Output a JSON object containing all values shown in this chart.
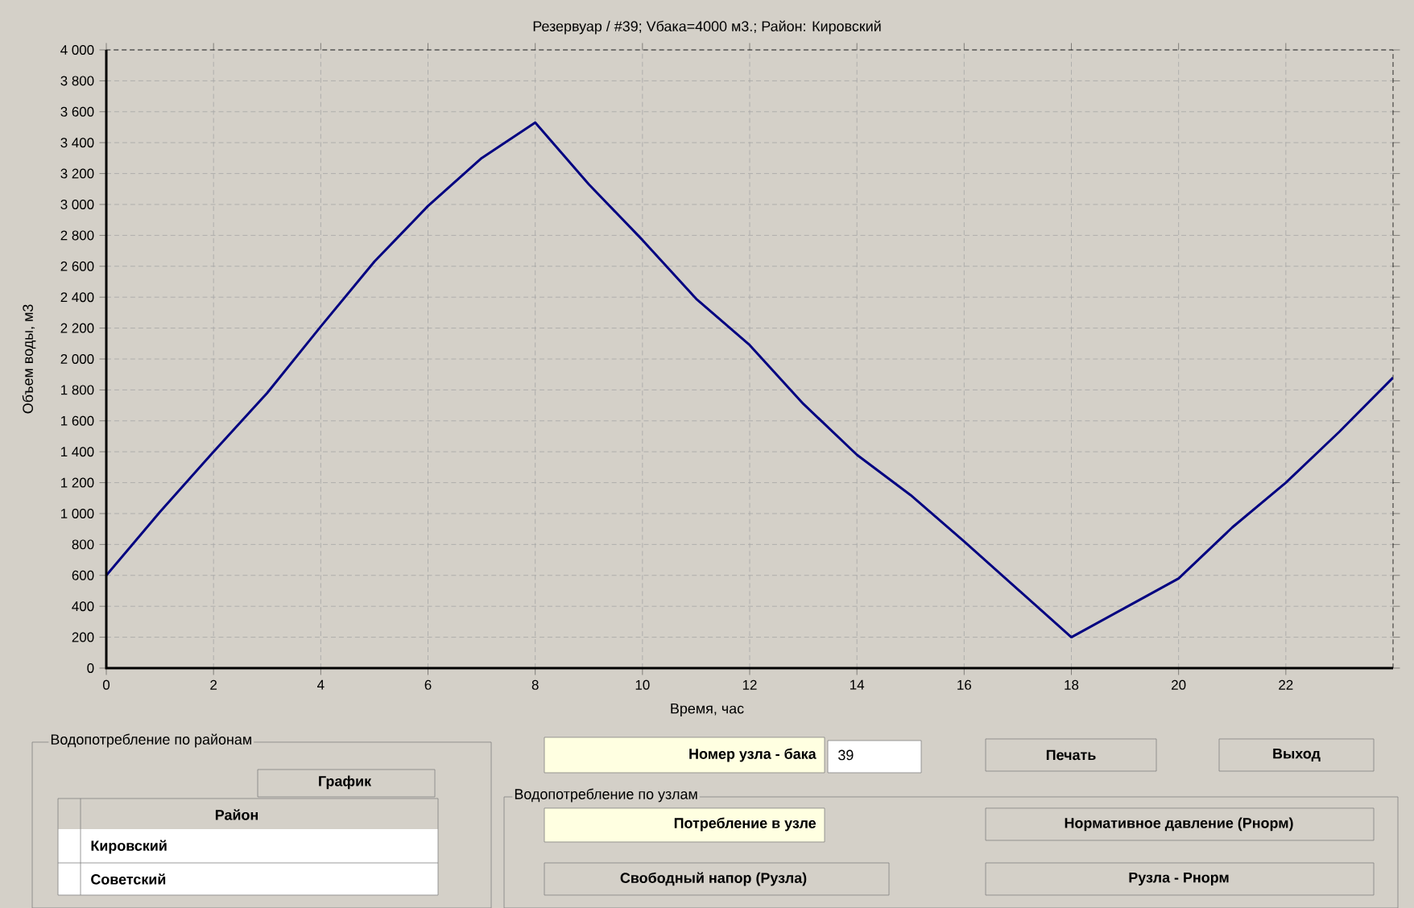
{
  "chart_data": {
    "type": "line",
    "title": "Резервуар / #39; Vбака=4000 м3.; Район: Кировский",
    "xlabel": "Время, час",
    "ylabel": "Объем воды, м3",
    "x": [
      0,
      1,
      2,
      3,
      4,
      5,
      6,
      7,
      8,
      9,
      10,
      11,
      12,
      13,
      14,
      15,
      16,
      17,
      18,
      19,
      20,
      21,
      22,
      23,
      24
    ],
    "series": [
      {
        "color": "#000080",
        "values": [
          600,
          1010,
          1400,
          1780,
          2210,
          2630,
          2990,
          3300,
          3530,
          3130,
          2770,
          2390,
          2090,
          1710,
          1380,
          1120,
          820,
          510,
          200,
          390,
          580,
          910,
          1200,
          1530,
          1880
        ]
      }
    ],
    "xlim": [
      0,
      24
    ],
    "ylim": [
      0,
      4000
    ],
    "xticks": [
      0,
      2,
      4,
      6,
      8,
      10,
      12,
      14,
      16,
      18,
      20,
      22
    ],
    "yticks": [
      0,
      200,
      400,
      600,
      800,
      {
        "value": 1000,
        "label": "1 000"
      },
      {
        "value": 1200,
        "label": "1 200"
      },
      {
        "value": 1400,
        "label": "1 400"
      },
      {
        "value": 1600,
        "label": "1 600"
      },
      {
        "value": 1800,
        "label": "1 800"
      },
      {
        "value": 2000,
        "label": "2 000"
      },
      {
        "value": 2200,
        "label": "2 200"
      },
      {
        "value": 2400,
        "label": "2 400"
      },
      {
        "value": 2600,
        "label": "2 600"
      },
      {
        "value": 2800,
        "label": "2 800"
      },
      {
        "value": 3000,
        "label": "3 000"
      },
      {
        "value": 3200,
        "label": "3 200"
      },
      {
        "value": 3400,
        "label": "3 400"
      },
      {
        "value": 3600,
        "label": "3 600"
      },
      {
        "value": 3800,
        "label": "3 800"
      },
      {
        "value": 4000,
        "label": "4 000"
      }
    ],
    "grid": true,
    "marker": "none",
    "line_style": "solid",
    "annotations": [
      "Водопотребление по районам",
      "График",
      "Район",
      "Кировский",
      "Советский",
      "Номер узла - бака",
      "39",
      "Печать",
      "Выход",
      "Водопотребление по узлам",
      "Потребление в узле",
      "Нормативное давление  (Рнорм)",
      "Свободный напор  (Рузла)",
      "Рузла - Рнорм"
    ]
  }
}
